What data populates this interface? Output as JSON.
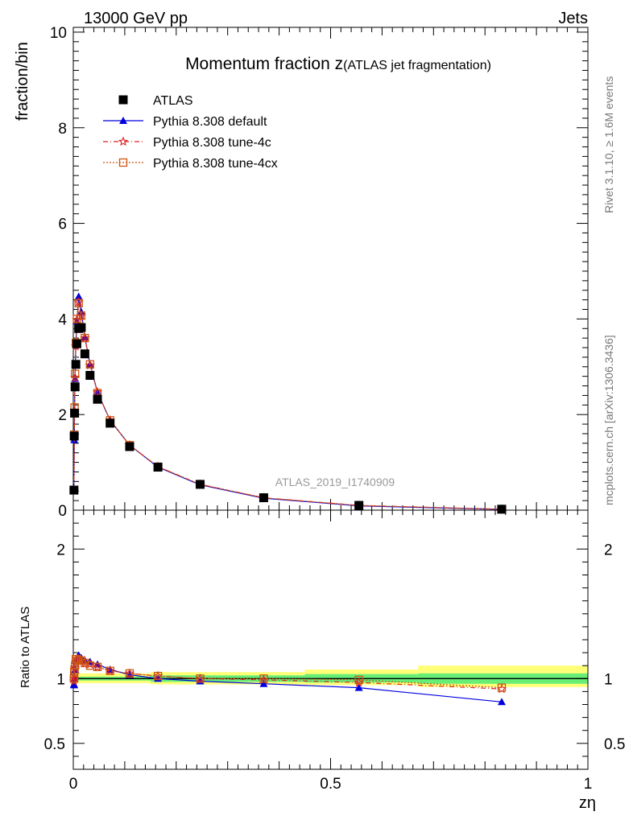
{
  "header": {
    "energy_label": "13000 GeV pp",
    "process_label": "Jets"
  },
  "side_labels": {
    "rivet": "Rivet 3.1.10, ≥ 1.6M events",
    "mcplots": "mcplots.cern.ch [arXiv:1306.3436]"
  },
  "chart_data": {
    "type": "line",
    "title_main": "Momentum fraction ",
    "title_symbol": "z",
    "title_sub": "(ATLAS jet fragmentation)",
    "analysis_label": "ATLAS_2019_I1740909",
    "xlabel": "zη",
    "ylabel_top": "fraction/bin",
    "ylabel_bottom": "Ratio to ATLAS",
    "xlim": [
      0,
      1
    ],
    "ylim_top": [
      0,
      10.1
    ],
    "ylim_bottom": [
      0.3,
      2.3
    ],
    "x_ticks": [
      "0",
      "0.5",
      "1"
    ],
    "y_ticks_top": [
      "0",
      "2",
      "4",
      "6",
      "8",
      "10"
    ],
    "y_ticks_bottom": [
      "0.5",
      "1",
      "2"
    ],
    "legend_position": "top-left",
    "x": [
      0.0013,
      0.0018,
      0.0025,
      0.0035,
      0.005,
      0.007,
      0.0105,
      0.0155,
      0.0225,
      0.0325,
      0.047,
      0.0715,
      0.1095,
      0.1645,
      0.2465,
      0.37,
      0.555,
      0.8325
    ],
    "data": {
      "name": "ATLAS",
      "color": "#000000",
      "values": [
        0.42,
        1.55,
        2.03,
        2.58,
        3.05,
        3.48,
        3.8,
        3.82,
        3.27,
        2.82,
        2.32,
        1.82,
        1.33,
        0.9,
        0.54,
        0.26,
        0.1,
        0.02
      ],
      "band_inner": [
        [
          0,
          0.15,
          0.985,
          1.015
        ],
        [
          0.15,
          0.45,
          0.975,
          1.025
        ],
        [
          0.45,
          0.67,
          0.97,
          1.035
        ],
        [
          0.67,
          1.0,
          0.96,
          1.04
        ]
      ],
      "band_outer": [
        [
          0,
          0.15,
          0.965,
          1.04
        ],
        [
          0.15,
          0.45,
          0.955,
          1.05
        ],
        [
          0.45,
          0.67,
          0.95,
          1.07
        ],
        [
          0.67,
          1.0,
          0.935,
          1.1
        ]
      ]
    },
    "series": [
      {
        "name": "Pythia 8.308 default",
        "color": "#0000dd",
        "marker": "triangle",
        "values": [
          0.4,
          1.47,
          2.02,
          2.75,
          3.47,
          3.95,
          4.47,
          4.15,
          3.62,
          3.05,
          2.47,
          1.88,
          1.36,
          0.9,
          0.53,
          0.25,
          0.09,
          0.016
        ],
        "ratio": [
          0.955,
          0.95,
          1.0,
          1.07,
          1.14,
          1.14,
          1.18,
          1.16,
          1.14,
          1.13,
          1.11,
          1.07,
          1.03,
          1.0,
          0.98,
          0.96,
          0.93,
          0.82
        ]
      },
      {
        "name": "Pythia 8.308 tune-4c",
        "color": "#dd2222",
        "marker": "star",
        "values": [
          0.41,
          1.55,
          2.08,
          2.77,
          3.43,
          3.98,
          4.35,
          4.07,
          3.6,
          3.03,
          2.47,
          1.88,
          1.36,
          0.91,
          0.54,
          0.26,
          0.1,
          0.018
        ],
        "ratio": [
          0.98,
          1.0,
          1.03,
          1.08,
          1.13,
          1.15,
          1.15,
          1.14,
          1.12,
          1.11,
          1.09,
          1.06,
          1.04,
          1.02,
          1.0,
          0.99,
          0.97,
          0.92
        ]
      },
      {
        "name": "Pythia 8.308 tune-4cx",
        "color": "#cc5511",
        "marker": "square-open",
        "values": [
          0.42,
          1.58,
          2.15,
          2.85,
          3.5,
          4.0,
          4.33,
          4.07,
          3.6,
          3.05,
          2.45,
          1.88,
          1.36,
          0.91,
          0.54,
          0.26,
          0.1,
          0.018
        ],
        "ratio": [
          1.0,
          1.05,
          1.07,
          1.1,
          1.15,
          1.15,
          1.14,
          1.14,
          1.12,
          1.1,
          1.09,
          1.06,
          1.04,
          1.02,
          1.0,
          1.0,
          0.99,
          0.93
        ]
      }
    ]
  }
}
